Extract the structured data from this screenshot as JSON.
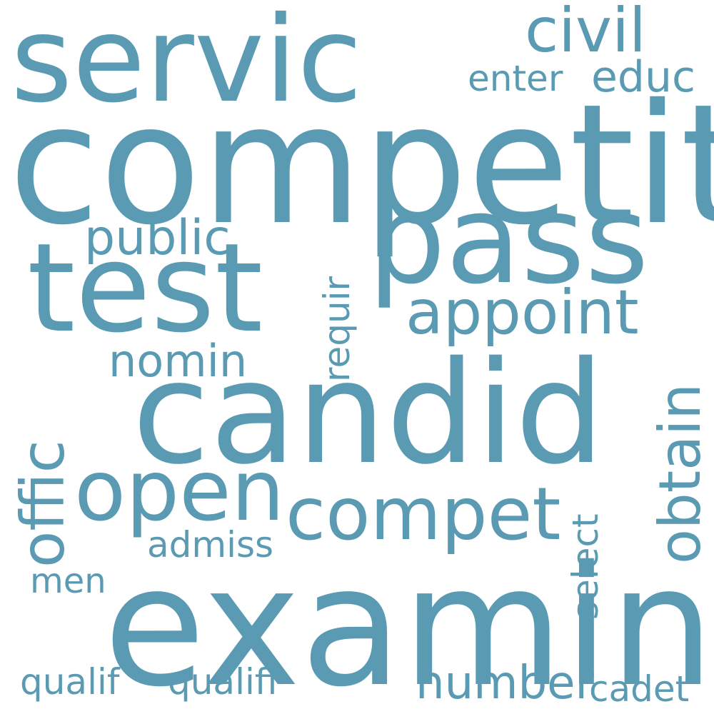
{
  "word_color": "#5a9bb3",
  "words": {
    "servic": "servic",
    "civil": "civil",
    "enter": "enter",
    "educ": "educ",
    "competit": "competit",
    "pass": "pass",
    "public": "public",
    "test": "test",
    "requir": "requir",
    "appoint": "appoint",
    "nomin": "nomin",
    "obtain": "obtain",
    "candid": "candid",
    "offic": "offic",
    "open": "open",
    "compet": "compet",
    "select": "select",
    "admiss": "admiss",
    "men": "men",
    "examin": "examin",
    "qualif": "qualif",
    "qualifi": "qualifi",
    "number": "number",
    "cadet": "cadet"
  }
}
